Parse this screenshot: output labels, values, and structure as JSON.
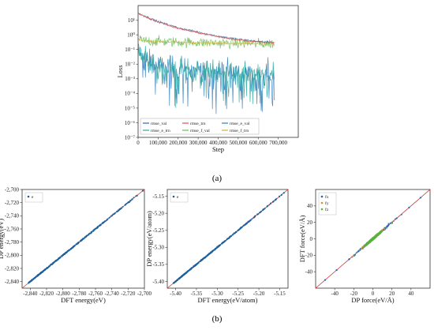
{
  "panel_labels": {
    "a": "(a)",
    "b": "(b)"
  },
  "colors": {
    "rmse_val": "#2b6cb0",
    "rmse_trn": "#d9534f",
    "rmse_e_val": "#2f80c0",
    "rmse_e_trn": "#2ca8a0",
    "rmse_f_val": "#6bbf59",
    "rmse_f_trn": "#e0b030",
    "parity_points": "#1f5f9a",
    "diagonal": "#c83232",
    "fx": "#2a62b8",
    "fy": "#e08a2c",
    "fz": "#58b23a"
  },
  "chart_data": [
    {
      "id": "loss",
      "type": "line",
      "xlabel": "Step",
      "ylabel": "Loss",
      "xlim": [
        0,
        800000
      ],
      "ylim": [
        1e-07,
        100
      ],
      "yscale": "log",
      "x_ticks": [
        0,
        100000,
        200000,
        300000,
        400000,
        500000,
        600000,
        700000
      ],
      "x_tick_labels": [
        "0",
        "100,000",
        "200,000",
        "300,000",
        "400,000",
        "500,000",
        "600,000",
        "700,000"
      ],
      "y_ticks": [
        1e-07,
        1e-06,
        1e-05,
        0.0001,
        0.001,
        0.01,
        0.1,
        1,
        10
      ],
      "y_tick_labels": [
        "10⁻⁷",
        "10⁻⁶",
        "10⁻⁵",
        "10⁻⁴",
        "10⁻³",
        "10⁻²",
        "10⁻¹",
        "10⁰",
        "10¹"
      ],
      "legend": {
        "position": "bottom-left",
        "entries": [
          "rmse_val",
          "rmse_trn",
          "rmse_e_val",
          "rmse_e_trn",
          "rmse_f_val",
          "rmse_f_trn"
        ]
      },
      "series": [
        {
          "name": "rmse_val",
          "x": [
            0,
            50000,
            100000,
            200000,
            300000,
            400000,
            500000,
            600000,
            680000
          ],
          "values": [
            30,
            15,
            8,
            3,
            1.5,
            0.8,
            0.5,
            0.35,
            0.3
          ]
        },
        {
          "name": "rmse_trn",
          "x": [
            0,
            50000,
            100000,
            200000,
            300000,
            400000,
            500000,
            600000,
            680000
          ],
          "values": [
            28,
            14,
            7.5,
            2.8,
            1.4,
            0.75,
            0.45,
            0.32,
            0.28
          ]
        },
        {
          "name": "rmse_e_val",
          "x": [
            0,
            20000,
            100000,
            200000,
            300000,
            400000,
            500000,
            600000,
            680000
          ],
          "values": [
            0.1,
            0.03,
            0.008,
            0.005,
            0.004,
            0.003,
            0.003,
            0.002,
            0.002
          ]
        },
        {
          "name": "rmse_e_trn",
          "x": [
            0,
            20000,
            100000,
            200000,
            300000,
            400000,
            500000,
            600000,
            680000
          ],
          "values": [
            0.09,
            0.028,
            0.007,
            0.0045,
            0.0035,
            0.003,
            0.0025,
            0.002,
            0.002
          ]
        },
        {
          "name": "rmse_f_val",
          "x": [
            0,
            20000,
            100000,
            200000,
            300000,
            400000,
            500000,
            600000,
            680000
          ],
          "values": [
            0.5,
            0.4,
            0.35,
            0.32,
            0.3,
            0.28,
            0.26,
            0.25,
            0.25
          ]
        },
        {
          "name": "rmse_f_trn",
          "x": [
            0,
            20000,
            100000,
            200000,
            300000,
            400000,
            500000,
            600000,
            680000
          ],
          "values": [
            0.48,
            0.4,
            0.34,
            0.31,
            0.29,
            0.27,
            0.26,
            0.25,
            0.24
          ]
        }
      ]
    },
    {
      "id": "energy",
      "type": "scatter",
      "xlabel": "DFT energy(eV)",
      "ylabel": "DP energy(eV)",
      "xlim": [
        -2850,
        -2700
      ],
      "ylim": [
        -2850,
        -2700
      ],
      "x_ticks": [
        -2840,
        -2820,
        -2800,
        -2780,
        -2760,
        -2740,
        -2720,
        -2700
      ],
      "x_tick_labels": [
        "-2,840",
        "-2,820",
        "-2,800",
        "-2,780",
        "-2,760",
        "-2,740",
        "-2,720",
        "-2,700"
      ],
      "y_ticks": [
        -2840,
        -2820,
        -2800,
        -2780,
        -2760,
        -2740,
        -2720,
        -2700
      ],
      "y_tick_labels": [
        "-2,840",
        "-2,820",
        "-2,800",
        "-2,780",
        "-2,760",
        "-2,740",
        "-2,720",
        "-2,700"
      ],
      "legend": {
        "position": "top-left",
        "entries": [
          "e"
        ]
      },
      "series": [
        {
          "name": "e",
          "x": [
            -2842,
            -2835,
            -2828,
            -2820,
            -2812,
            -2805,
            -2798,
            -2790,
            -2782,
            -2775,
            -2765,
            -2755,
            -2745,
            -2730,
            -2715,
            -2702
          ],
          "values": [
            -2842,
            -2835,
            -2828,
            -2820,
            -2812,
            -2805,
            -2798,
            -2790,
            -2782,
            -2775,
            -2765,
            -2755,
            -2745,
            -2730,
            -2715,
            -2702
          ]
        }
      ]
    },
    {
      "id": "energy_per_atom",
      "type": "scatter",
      "xlabel": "DFT energy(eV/atom)",
      "ylabel": "DP energy(eV/atom)",
      "xlim": [
        -5.42,
        -5.13
      ],
      "ylim": [
        -5.42,
        -5.13
      ],
      "x_ticks": [
        -5.4,
        -5.35,
        -5.3,
        -5.25,
        -5.2,
        -5.15
      ],
      "x_tick_labels": [
        "-5.40",
        "-5.35",
        "-5.30",
        "-5.25",
        "-5.20",
        "-5.15"
      ],
      "y_ticks": [
        -5.4,
        -5.35,
        -5.3,
        -5.25,
        -5.2,
        -5.15
      ],
      "y_tick_labels": [
        "-5.40",
        "-5.35",
        "-5.30",
        "-5.25",
        "-5.20",
        "-5.15"
      ],
      "legend": {
        "position": "top-left",
        "entries": [
          "e"
        ]
      },
      "series": [
        {
          "name": "e",
          "x": [
            -5.405,
            -5.39,
            -5.375,
            -5.36,
            -5.345,
            -5.33,
            -5.315,
            -5.3,
            -5.285,
            -5.27,
            -5.25,
            -5.23,
            -5.21,
            -5.18,
            -5.16,
            -5.14
          ],
          "values": [
            -5.405,
            -5.39,
            -5.375,
            -5.36,
            -5.345,
            -5.33,
            -5.315,
            -5.3,
            -5.285,
            -5.27,
            -5.25,
            -5.23,
            -5.21,
            -5.18,
            -5.16,
            -5.14
          ]
        }
      ]
    },
    {
      "id": "force",
      "type": "scatter",
      "xlabel": "DP force(eV/Å)",
      "ylabel": "DFT force(eV/Å)",
      "xlim": [
        -60,
        60
      ],
      "ylim": [
        -60,
        60
      ],
      "x_ticks": [
        -40,
        -20,
        0,
        20,
        40
      ],
      "x_tick_labels": [
        "-40",
        "-20",
        "0",
        "20",
        "40"
      ],
      "y_ticks": [
        -40,
        -20,
        0,
        20,
        40
      ],
      "y_tick_labels": [
        "-40",
        "-20",
        "0",
        "20",
        "40"
      ],
      "legend": {
        "position": "top-left",
        "entries": [
          "fx",
          "fy",
          "fz"
        ]
      },
      "series": [
        {
          "name": "fx",
          "x": [
            -50,
            -38,
            -25,
            -15,
            -8,
            0,
            8,
            15,
            25,
            38,
            50
          ],
          "values": [
            -50,
            -38,
            -25,
            -15,
            -8,
            0,
            8,
            15,
            25,
            38,
            50
          ]
        },
        {
          "name": "fy",
          "x": [
            -22,
            -12,
            -5,
            0,
            5,
            12,
            22
          ],
          "values": [
            -22,
            -12,
            -5,
            0,
            5,
            12,
            22
          ]
        },
        {
          "name": "fz",
          "x": [
            -20,
            -14,
            -8,
            -3,
            0,
            3,
            8,
            14,
            20
          ],
          "values": [
            -20,
            -14,
            -8,
            -3,
            0,
            3,
            8,
            14,
            20
          ]
        }
      ]
    }
  ]
}
